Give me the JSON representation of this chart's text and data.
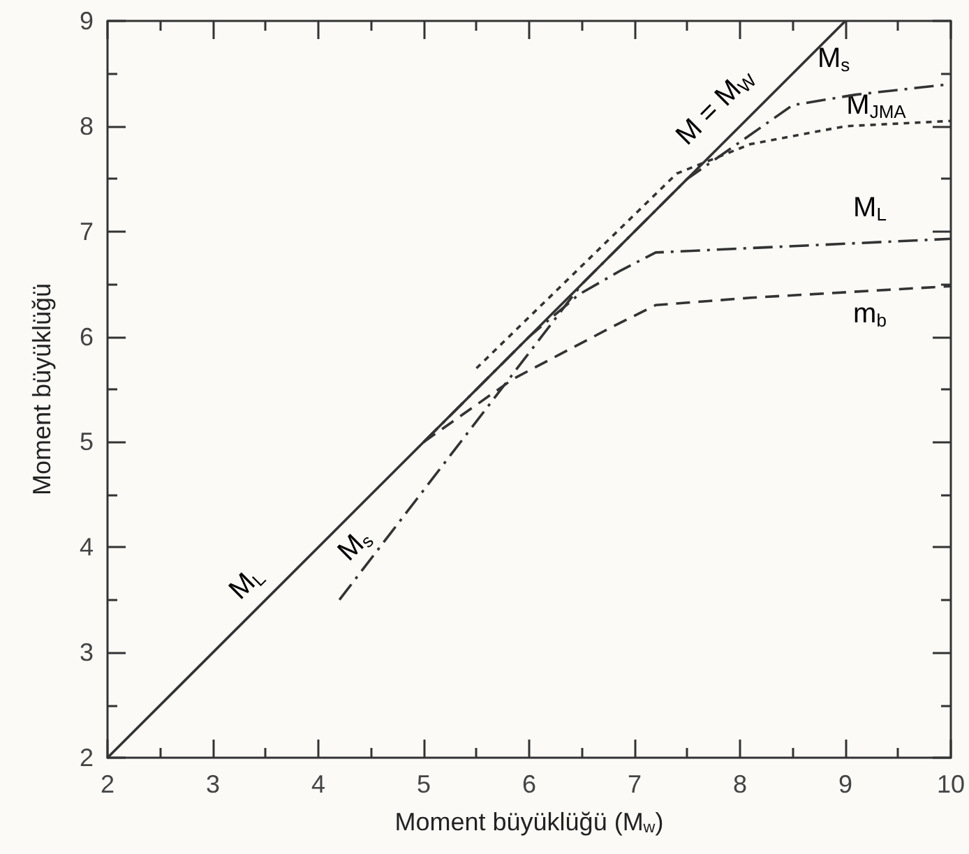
{
  "chart_data": {
    "type": "line",
    "xlabel": "Moment büyüklüğü (M$_{w}$)",
    "ylabel": "Moment büyüklüğü",
    "xlim": [
      2,
      10
    ],
    "ylim": [
      2,
      9
    ],
    "xticks": [
      2,
      {
        "value": 2.5,
        "label": null
      },
      3,
      {
        "value": 3.5,
        "label": null
      },
      4,
      {
        "value": 4.5,
        "label": null
      },
      5,
      {
        "value": 5.5,
        "label": null
      },
      6,
      {
        "value": 6.5,
        "label": null
      },
      7,
      {
        "value": 7.5,
        "label": null
      },
      8,
      {
        "value": 8.5,
        "label": null
      },
      9,
      {
        "value": 9.5,
        "label": null
      },
      10
    ],
    "yticks": [
      2,
      {
        "value": 2.5,
        "label": null
      },
      3,
      {
        "value": 3.5,
        "label": null
      },
      4,
      {
        "value": 4.5,
        "label": null
      },
      5,
      {
        "value": 5.5,
        "label": null
      },
      6,
      {
        "value": 6.5,
        "label": null
      },
      7,
      {
        "value": 7.5,
        "label": null
      },
      8,
      {
        "value": 8.5,
        "label": null
      },
      9
    ],
    "grid": false,
    "series": [
      {
        "color": "#333333",
        "line_style": "solid",
        "x": [
          2,
          9
        ],
        "values": [
          2,
          9
        ]
      },
      {
        "color": "#333333",
        "line_style": "dashdot",
        "x": [
          4.2,
          6.5,
          7.5,
          8.5,
          9.1,
          10
        ],
        "values": [
          3.5,
          6.5,
          7.5,
          8.2,
          8.3,
          8.4
        ]
      },
      {
        "color": "#333333",
        "line_style": "dotted",
        "x": [
          5.5,
          7.4,
          8.1,
          9,
          10
        ],
        "values": [
          5.7,
          7.55,
          7.83,
          8.0,
          8.05
        ]
      },
      {
        "color": "#333333",
        "line_style": "dashdot",
        "x": [
          5,
          6,
          6.47,
          6.87,
          7.2,
          10
        ],
        "values": [
          5,
          6,
          6.4,
          6.63,
          6.8,
          6.93
        ]
      },
      {
        "color": "#333333",
        "line_style": "dashed",
        "x": [
          5,
          5.85,
          6.8,
          7.2,
          8.1,
          10
        ],
        "values": [
          5,
          5.6,
          6.1,
          6.3,
          6.37,
          6.48
        ]
      }
    ],
    "annotations": [
      {
        "text": "M = M$_{W}$",
        "x": 8,
        "y": 8
      },
      {
        "text": "M$_{s}$",
        "x": 9.1,
        "y": 8.3
      },
      {
        "text": "M$_{JMA}$",
        "x": 9,
        "y": 8.0
      },
      {
        "text": "M$_{L}$",
        "x": 10,
        "y": 6.93
      },
      {
        "text": "m$_{b}$",
        "x": 10,
        "y": 6.48
      },
      {
        "text": "M$_{L}$",
        "x": 3.5,
        "y": 3.5
      },
      {
        "text": "M$_{s}$",
        "x": 4.5,
        "y": 3.89
      }
    ]
  }
}
